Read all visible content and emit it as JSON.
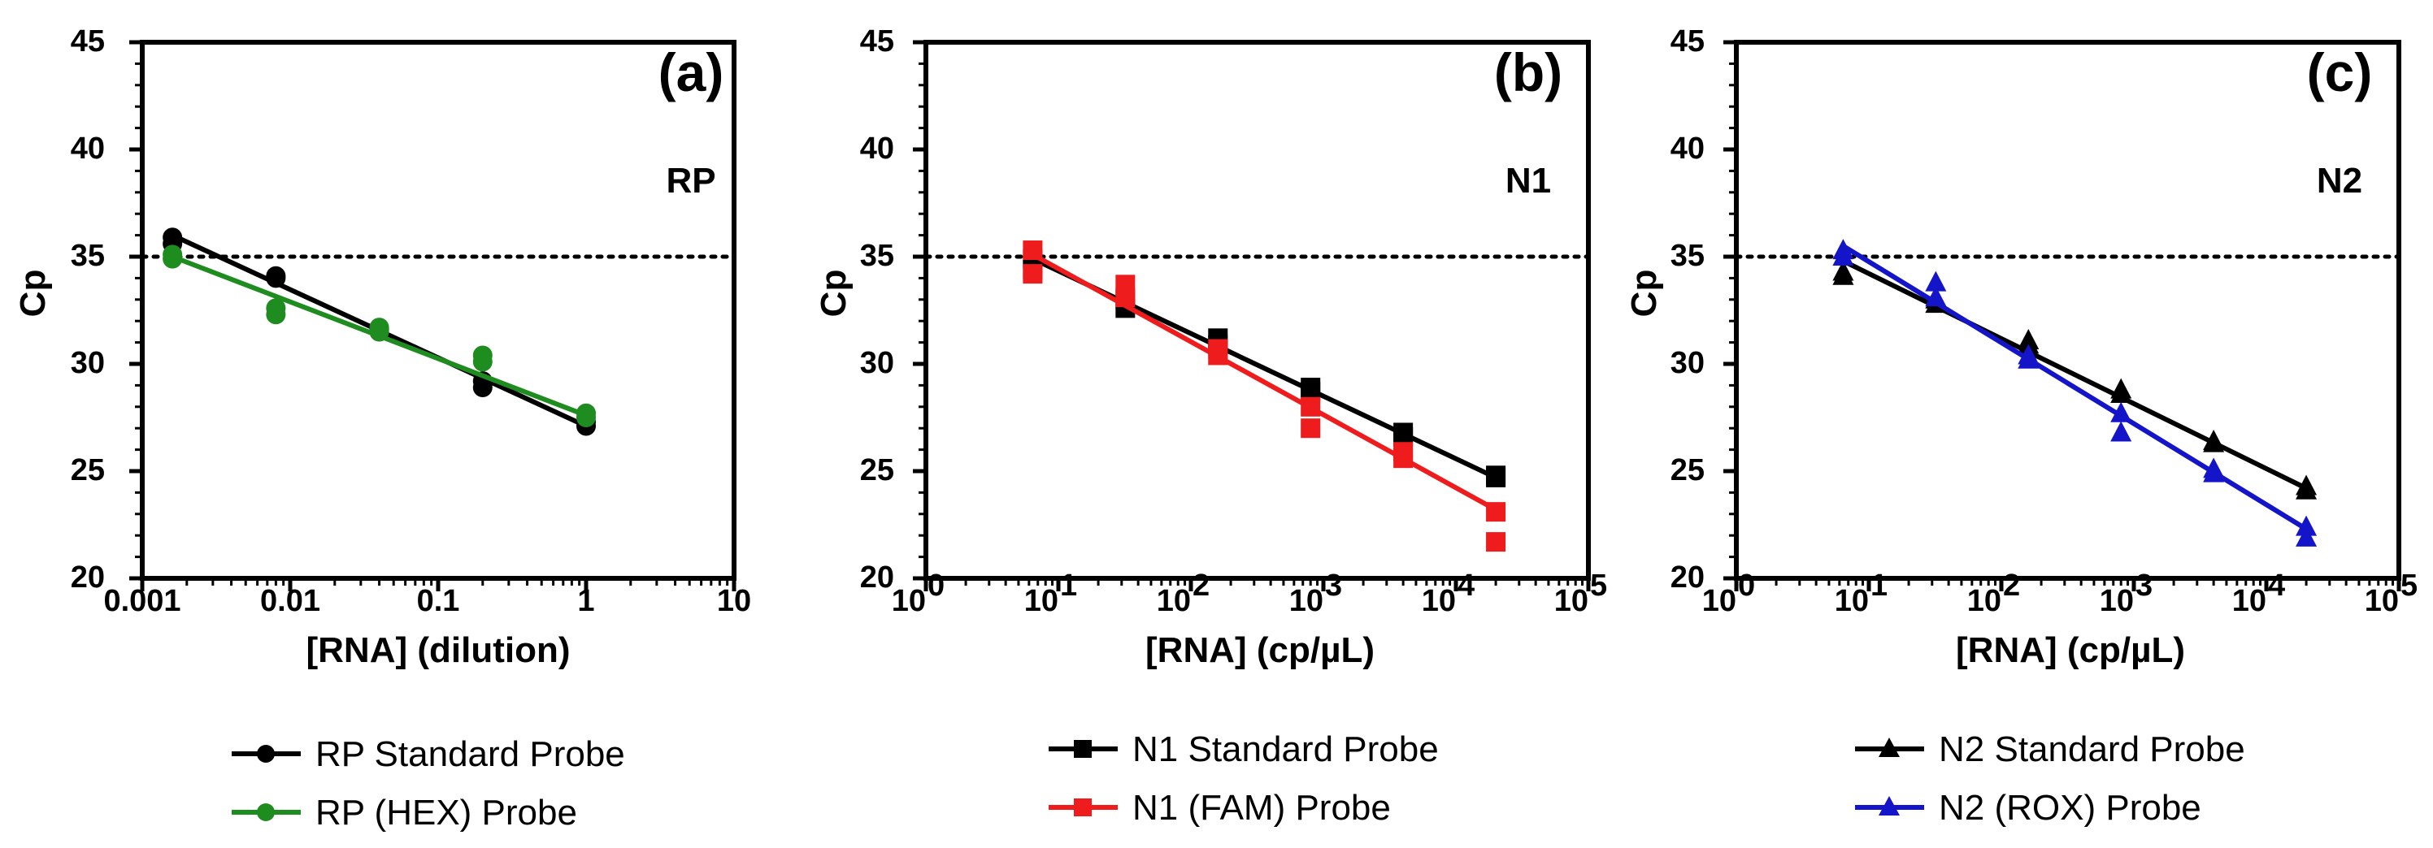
{
  "chart_data": [
    {
      "type": "scatter",
      "panel_label": "(a)",
      "target": "RP",
      "xscale": "log",
      "xlabel": "[RNA] (dilution)",
      "ylabel": "Cp",
      "xlim": [
        0.001,
        10
      ],
      "ylim": [
        20,
        45
      ],
      "xticks": [
        {
          "value": 0.001,
          "text": "0.001"
        },
        {
          "value": 0.01,
          "text": "0.01"
        },
        {
          "value": 0.1,
          "text": "0.1"
        },
        {
          "value": 1,
          "text": "1"
        },
        {
          "value": 10,
          "text": "10"
        }
      ],
      "yticks": [
        "20",
        "25",
        "30",
        "35",
        "40",
        "45"
      ],
      "threshold": 35,
      "series": [
        {
          "name": "RP Standard Probe",
          "color": "#000000",
          "marker": "circle",
          "points": [
            [
              0.0016,
              35.9
            ],
            [
              0.0016,
              35.6
            ],
            [
              0.008,
              34.1
            ],
            [
              0.008,
              34.0
            ],
            [
              0.04,
              31.6
            ],
            [
              0.04,
              31.5
            ],
            [
              0.2,
              29.2
            ],
            [
              0.2,
              28.9
            ],
            [
              1,
              27.3
            ],
            [
              1,
              27.1
            ]
          ],
          "fit": [
            [
              0.0016,
              36.0
            ],
            [
              1,
              27.1
            ]
          ]
        },
        {
          "name": "RP (HEX) Probe",
          "color": "#1e8c1e",
          "marker": "circle",
          "points": [
            [
              0.0016,
              35.1
            ],
            [
              0.0016,
              34.9
            ],
            [
              0.008,
              32.6
            ],
            [
              0.008,
              32.3
            ],
            [
              0.04,
              31.7
            ],
            [
              0.04,
              31.5
            ],
            [
              0.2,
              30.4
            ],
            [
              0.2,
              30.1
            ],
            [
              1,
              27.7
            ],
            [
              1,
              27.5
            ]
          ],
          "fit": [
            [
              0.0016,
              35.0
            ],
            [
              1,
              27.6
            ]
          ]
        }
      ]
    },
    {
      "type": "scatter",
      "panel_label": "(b)",
      "target": "N1",
      "xscale": "log",
      "xlabel": "[RNA] (cp/µL)",
      "ylabel": "Cp",
      "xlim": [
        1,
        100000
      ],
      "ylim": [
        20,
        45
      ],
      "xticks": [
        {
          "value": 1,
          "base": "10",
          "exp": "0"
        },
        {
          "value": 10,
          "base": "10",
          "exp": "1"
        },
        {
          "value": 100,
          "base": "10",
          "exp": "2"
        },
        {
          "value": 1000,
          "base": "10",
          "exp": "3"
        },
        {
          "value": 10000,
          "base": "10",
          "exp": "4"
        },
        {
          "value": 100000,
          "base": "10",
          "exp": "5"
        }
      ],
      "yticks": [
        "20",
        "25",
        "30",
        "35",
        "40",
        "45"
      ],
      "threshold": 35,
      "series": [
        {
          "name": "N1 Standard Probe",
          "color": "#000000",
          "marker": "square",
          "points": [
            [
              6.4,
              34.9
            ],
            [
              6.4,
              34.4
            ],
            [
              32,
              33.0
            ],
            [
              32,
              32.6
            ],
            [
              160,
              31.2
            ],
            [
              160,
              30.9
            ],
            [
              800,
              28.9
            ],
            [
              800,
              28.7
            ],
            [
              4000,
              26.8
            ],
            [
              4000,
              26.6
            ],
            [
              20000,
              24.8
            ],
            [
              20000,
              24.7
            ]
          ],
          "fit": [
            [
              6.4,
              34.9
            ],
            [
              20000,
              24.7
            ]
          ]
        },
        {
          "name": "N1 (FAM) Probe",
          "color": "#ee1c1c",
          "marker": "square",
          "points": [
            [
              6.4,
              35.3
            ],
            [
              6.4,
              34.2
            ],
            [
              32,
              33.7
            ],
            [
              32,
              33.1
            ],
            [
              160,
              30.7
            ],
            [
              160,
              30.4
            ],
            [
              800,
              28.0
            ],
            [
              800,
              27.0
            ],
            [
              4000,
              25.9
            ],
            [
              4000,
              25.6
            ],
            [
              20000,
              23.1
            ],
            [
              20000,
              21.7
            ]
          ],
          "fit": [
            [
              6.4,
              35.1
            ],
            [
              20000,
              23.2
            ]
          ]
        }
      ]
    },
    {
      "type": "scatter",
      "panel_label": "(c)",
      "target": "N2",
      "xscale": "log",
      "xlabel": "[RNA] (cp/µL)",
      "ylabel": "Cp",
      "xlim": [
        1,
        100000
      ],
      "ylim": [
        20,
        45
      ],
      "xticks": [
        {
          "value": 1,
          "base": "10",
          "exp": "0"
        },
        {
          "value": 10,
          "base": "10",
          "exp": "1"
        },
        {
          "value": 100,
          "base": "10",
          "exp": "2"
        },
        {
          "value": 1000,
          "base": "10",
          "exp": "3"
        },
        {
          "value": 10000,
          "base": "10",
          "exp": "4"
        },
        {
          "value": 100000,
          "base": "10",
          "exp": "5"
        }
      ],
      "yticks": [
        "20",
        "25",
        "30",
        "35",
        "40",
        "45"
      ],
      "threshold": 35,
      "series": [
        {
          "name": "N2 Standard Probe",
          "color": "#000000",
          "marker": "triangle",
          "points": [
            [
              6.4,
              34.3
            ],
            [
              6.4,
              34.1
            ],
            [
              32,
              33.0
            ],
            [
              32,
              32.8
            ],
            [
              160,
              31.1
            ],
            [
              160,
              30.9
            ],
            [
              800,
              28.8
            ],
            [
              800,
              28.6
            ],
            [
              4000,
              26.4
            ],
            [
              4000,
              26.3
            ],
            [
              20000,
              24.3
            ],
            [
              20000,
              24.1
            ]
          ],
          "fit": [
            [
              6.4,
              34.8
            ],
            [
              20000,
              24.2
            ]
          ]
        },
        {
          "name": "N2 (ROX) Probe",
          "color": "#1414c8",
          "marker": "triangle",
          "points": [
            [
              6.4,
              35.3
            ],
            [
              6.4,
              35.0
            ],
            [
              32,
              33.8
            ],
            [
              32,
              33.1
            ],
            [
              160,
              30.4
            ],
            [
              160,
              30.2
            ],
            [
              800,
              27.7
            ],
            [
              800,
              26.8
            ],
            [
              4000,
              25.1
            ],
            [
              4000,
              24.9
            ],
            [
              20000,
              22.4
            ],
            [
              20000,
              21.9
            ]
          ],
          "fit": [
            [
              6.4,
              35.5
            ],
            [
              20000,
              22.3
            ]
          ]
        }
      ]
    }
  ]
}
